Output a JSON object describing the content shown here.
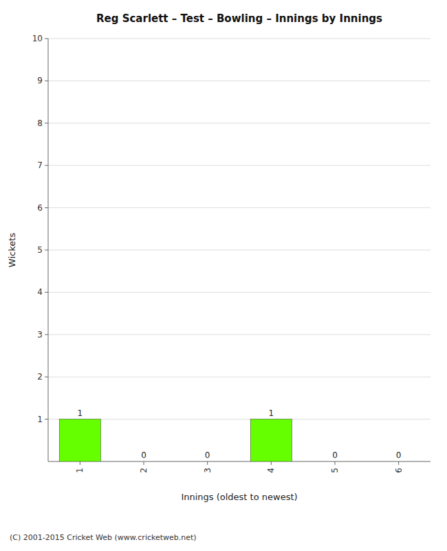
{
  "chart_data": {
    "type": "bar",
    "title": "Reg Scarlett – Test – Bowling – Innings by Innings",
    "xlabel": "Innings (oldest to newest)",
    "ylabel": "Wickets",
    "categories": [
      "1",
      "2",
      "3",
      "4",
      "5",
      "6"
    ],
    "values": [
      1,
      0,
      0,
      1,
      0,
      0
    ],
    "color": "#66ff00",
    "ylim": [
      0,
      10
    ],
    "yticks": [
      1,
      2,
      3,
      4,
      5,
      6,
      7,
      8,
      9,
      10
    ],
    "grid": true,
    "data_labels": true,
    "annotations": [
      "(C) 2001-2015 Cricket Web (www.cricketweb.net)"
    ]
  }
}
